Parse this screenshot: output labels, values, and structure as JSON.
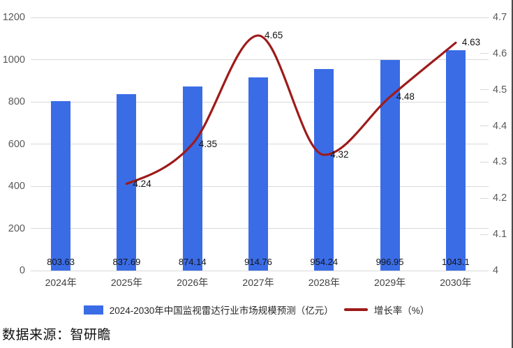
{
  "page": {
    "source_note": "数据来源：智研瞻"
  },
  "chart_data": {
    "type": "bar+line",
    "title": "",
    "categories": [
      "2024年",
      "2025年",
      "2026年",
      "2027年",
      "2028年",
      "2029年",
      "2030年"
    ],
    "series": [
      {
        "name": "2024-2030年中国监视雷达行业市场规模预测（亿元）",
        "type": "bar",
        "axis": "left",
        "color": "#3a6ce6",
        "values": [
          803.63,
          837.69,
          874.14,
          914.76,
          954.24,
          996.95,
          1043.1
        ]
      },
      {
        "name": "增长率（%）",
        "type": "line",
        "axis": "right",
        "color": "#9e1a1a",
        "values": [
          null,
          4.24,
          4.35,
          4.65,
          4.32,
          4.48,
          4.63
        ]
      }
    ],
    "left_axis": {
      "min": 0,
      "max": 1200,
      "step": 200,
      "ticks": [
        "1200",
        "1000",
        "800",
        "600",
        "400",
        "200",
        "0"
      ]
    },
    "right_axis": {
      "min": 4.0,
      "max": 4.7,
      "step": 0.1,
      "ticks": [
        "4.7",
        "4.6",
        "4.5",
        "4.4",
        "4.3",
        "4.2",
        "4.1",
        "4"
      ]
    },
    "grid": "horizontal",
    "legend_position": "bottom"
  }
}
